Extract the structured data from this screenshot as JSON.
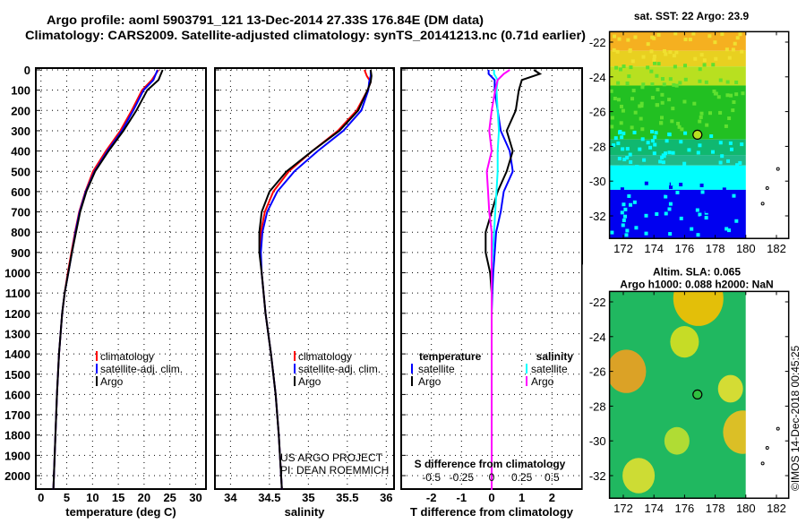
{
  "chart_data": [
    {
      "type": "line",
      "title": "Argo profile: aoml 5903791_121 13-Dec-2014 27.33S 176.84E (DM data)",
      "subtitle": "Climatology: CARS2009. Satellite-adjusted climatology: synTS_20141213.nc (0.71d earlier)",
      "xlabel": "temperature (deg C)",
      "xlim": [
        -1,
        32
      ],
      "xticks": [
        0,
        5,
        10,
        15,
        20,
        25,
        30
      ],
      "ylim": [
        2070,
        0
      ],
      "yticks": [
        0,
        100,
        200,
        300,
        400,
        500,
        600,
        700,
        800,
        900,
        1000,
        1100,
        1200,
        1300,
        1400,
        1500,
        1600,
        1700,
        1800,
        1900,
        2000
      ],
      "depth": [
        0,
        50,
        100,
        200,
        300,
        400,
        500,
        600,
        700,
        800,
        900,
        1000,
        1100,
        1200,
        1400,
        1600,
        1800,
        2000,
        2070
      ],
      "legend": [
        "climatology",
        "satellite-adj. clim.",
        "Argo"
      ],
      "series": [
        {
          "name": "climatology",
          "color": "#ff0000",
          "values": [
            22.8,
            21.5,
            19.6,
            17.6,
            15.4,
            12.6,
            10.1,
            8.6,
            7.4,
            6.6,
            5.9,
            5.2,
            4.6,
            4.1,
            3.5,
            3.1,
            2.8,
            2.5,
            2.4
          ]
        },
        {
          "name": "satellite-adj. clim.",
          "color": "#0000ff",
          "values": [
            22.6,
            21.8,
            19.9,
            17.9,
            15.7,
            12.9,
            10.4,
            8.7,
            7.5,
            6.7,
            6.0,
            5.3,
            4.6,
            4.1,
            3.5,
            3.1,
            2.8,
            2.5,
            2.4
          ]
        },
        {
          "name": "Argo",
          "color": "#000000",
          "values": [
            23.6,
            22.8,
            20.6,
            18.5,
            16.0,
            13.1,
            10.5,
            8.8,
            7.6,
            6.8,
            6.0,
            5.3,
            4.6,
            4.1,
            3.5,
            3.1,
            2.8,
            2.5,
            2.4
          ]
        }
      ]
    },
    {
      "type": "line",
      "xlabel": "salinity",
      "xlim": [
        33.8,
        36.1
      ],
      "xticks": [
        34,
        34.5,
        35,
        35.5,
        36
      ],
      "depth": [
        0,
        30,
        60,
        100,
        200,
        300,
        400,
        500,
        600,
        700,
        800,
        900,
        1000,
        1200,
        1400,
        1600,
        1800,
        2000,
        2070
      ],
      "legend": [
        "climatology",
        "satellite-adj. clim.",
        "Argo"
      ],
      "credit": [
        "US ARGO PROJECT",
        "PI: DEAN ROEMMICH"
      ],
      "series": [
        {
          "name": "climatology",
          "color": "#ff0000",
          "values": [
            35.72,
            35.75,
            35.8,
            35.76,
            35.62,
            35.38,
            35.05,
            34.75,
            34.55,
            34.44,
            34.39,
            34.38,
            34.4,
            34.45,
            34.52,
            34.58,
            34.62,
            34.65,
            34.66
          ]
        },
        {
          "name": "satellite-adj. clim.",
          "color": "#0000ff",
          "values": [
            35.8,
            35.8,
            35.78,
            35.77,
            35.68,
            35.45,
            35.12,
            34.82,
            34.6,
            34.47,
            34.41,
            34.39,
            34.4,
            34.45,
            34.52,
            34.58,
            34.62,
            34.65,
            34.66
          ]
        },
        {
          "name": "Argo",
          "color": "#000000",
          "values": [
            35.8,
            35.81,
            35.8,
            35.76,
            35.64,
            35.4,
            35.05,
            34.72,
            34.5,
            34.4,
            34.37,
            34.37,
            34.4,
            34.45,
            34.52,
            34.58,
            34.62,
            34.65,
            34.66
          ]
        }
      ]
    },
    {
      "type": "line",
      "xlabel": "T difference from climatology",
      "xlim": [
        -3,
        3
      ],
      "xticks": [
        -2,
        -1,
        0,
        1,
        2
      ],
      "xlabel2": "S difference from climatology",
      "x2ticks": [
        "-0.5",
        "-0.25",
        "0",
        "0.25",
        "0.5"
      ],
      "depth": [
        0,
        20,
        50,
        100,
        200,
        300,
        400,
        500,
        600,
        700,
        800,
        900,
        1000,
        1100,
        1200,
        1400,
        1600,
        1800,
        2000,
        2070
      ],
      "legend_t_title": "temperature",
      "legend_s_title": "salinity",
      "legend": [
        "satellite",
        "Argo"
      ],
      "series": [
        {
          "name": "temperature satellite",
          "color": "#0000ff",
          "values": [
            -0.1,
            -0.1,
            0.1,
            0.1,
            0.2,
            0.3,
            0.6,
            0.7,
            0.4,
            0.3,
            0.15,
            0.1,
            0.05,
            0.02,
            0,
            0,
            0,
            0,
            0,
            0
          ]
        },
        {
          "name": "temperature Argo",
          "color": "#000000",
          "values": [
            1.4,
            1.6,
            1.0,
            0.9,
            0.8,
            0.5,
            0.7,
            0.5,
            0.2,
            0,
            -0.2,
            -0.2,
            -0.05,
            0,
            0,
            0,
            0,
            0,
            0,
            0
          ]
        },
        {
          "name": "salinity satellite",
          "color": "#00ffff",
          "values": [
            0.02,
            0.02,
            0.05,
            0.04,
            0.05,
            0.06,
            0.05,
            0.05,
            0.04,
            0.03,
            0.02,
            0.01,
            0,
            0,
            0,
            0,
            0,
            0,
            0,
            0
          ]
        },
        {
          "name": "salinity Argo",
          "color": "#ff00ff",
          "values": [
            0.15,
            0.1,
            0.05,
            0.03,
            0,
            -0.02,
            0,
            -0.04,
            -0.03,
            -0.02,
            0,
            0,
            0,
            0,
            0,
            0,
            0,
            0,
            0,
            0
          ]
        }
      ]
    }
  ],
  "maps": {
    "sst_title": "sat. SST: 22 Argo: 23.9",
    "sla_title1": "Altim. SLA: 0.065",
    "sla_title2": "Argo h1000: 0.088 h2000: NaN",
    "lat_ticks": [
      "-22",
      "-24",
      "-26",
      "-28",
      "-30",
      "-32"
    ],
    "lon_ticks": [
      "172",
      "174",
      "176",
      "178",
      "180",
      "182"
    ],
    "marker": {
      "lat": -27.33,
      "lon": 176.84
    }
  },
  "footer": "©IMOS 14-Dec-2018 00:45:25"
}
